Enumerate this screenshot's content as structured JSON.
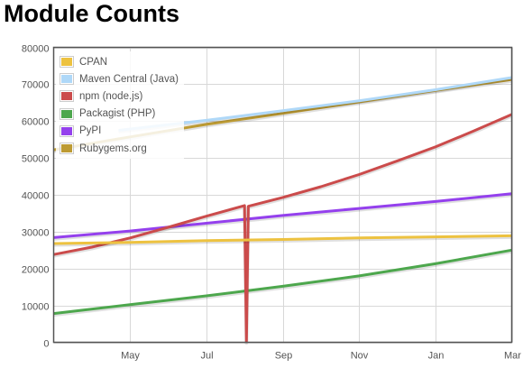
{
  "chart_data": {
    "type": "line",
    "title": "Module Counts",
    "xlabel": "",
    "ylabel": "",
    "x_ticks": [
      "May",
      "Jul",
      "Sep",
      "Nov",
      "Jan",
      "Mar"
    ],
    "x_tick_positions": [
      2,
      4,
      6,
      8,
      10,
      12
    ],
    "xlim": [
      0,
      12
    ],
    "ylim": [
      0,
      80000
    ],
    "y_ticks": [
      0,
      10000,
      20000,
      30000,
      40000,
      50000,
      60000,
      70000,
      80000
    ],
    "grid": true,
    "legend_position": "top-left",
    "series": [
      {
        "name": "CPAN",
        "color": "#edc240",
        "points": [
          [
            0,
            26800
          ],
          [
            2,
            27100
          ],
          [
            4,
            27600
          ],
          [
            6,
            27900
          ],
          [
            8,
            28300
          ],
          [
            10,
            28600
          ],
          [
            12,
            28900
          ]
        ]
      },
      {
        "name": "Maven Central (Java)",
        "color": "#afd8f8",
        "points": [
          [
            1.7,
            57500
          ],
          [
            4,
            60200
          ],
          [
            6,
            62800
          ],
          [
            8,
            65500
          ],
          [
            10,
            68500
          ],
          [
            12,
            71800
          ]
        ]
      },
      {
        "name": "npm (node.js)",
        "color": "#cb4b4b",
        "points": [
          [
            0,
            23800
          ],
          [
            1,
            25800
          ],
          [
            2,
            28300
          ],
          [
            3,
            31200
          ],
          [
            4,
            34200
          ],
          [
            5,
            37100
          ],
          [
            5.05,
            200
          ],
          [
            5.1,
            36900
          ],
          [
            6,
            39300
          ],
          [
            7,
            42200
          ],
          [
            8,
            45500
          ],
          [
            9,
            49200
          ],
          [
            10,
            53000
          ],
          [
            11,
            57300
          ],
          [
            12,
            61800
          ]
        ]
      },
      {
        "name": "Packagist (PHP)",
        "color": "#4da74d",
        "points": [
          [
            0,
            7800
          ],
          [
            2,
            10200
          ],
          [
            4,
            12600
          ],
          [
            6,
            15200
          ],
          [
            8,
            18000
          ],
          [
            10,
            21300
          ],
          [
            12,
            25000
          ]
        ]
      },
      {
        "name": "PyPI",
        "color": "#9440ed",
        "points": [
          [
            0,
            28400
          ],
          [
            2,
            30200
          ],
          [
            4,
            32300
          ],
          [
            6,
            34400
          ],
          [
            8,
            36300
          ],
          [
            10,
            38200
          ],
          [
            12,
            40300
          ]
        ]
      },
      {
        "name": "Rubygems.org",
        "color": "#bd9b33",
        "points": [
          [
            0,
            52200
          ],
          [
            2,
            55700
          ],
          [
            4,
            59100
          ],
          [
            6,
            62100
          ],
          [
            8,
            65200
          ],
          [
            10,
            68300
          ],
          [
            12,
            71300
          ]
        ]
      }
    ]
  }
}
